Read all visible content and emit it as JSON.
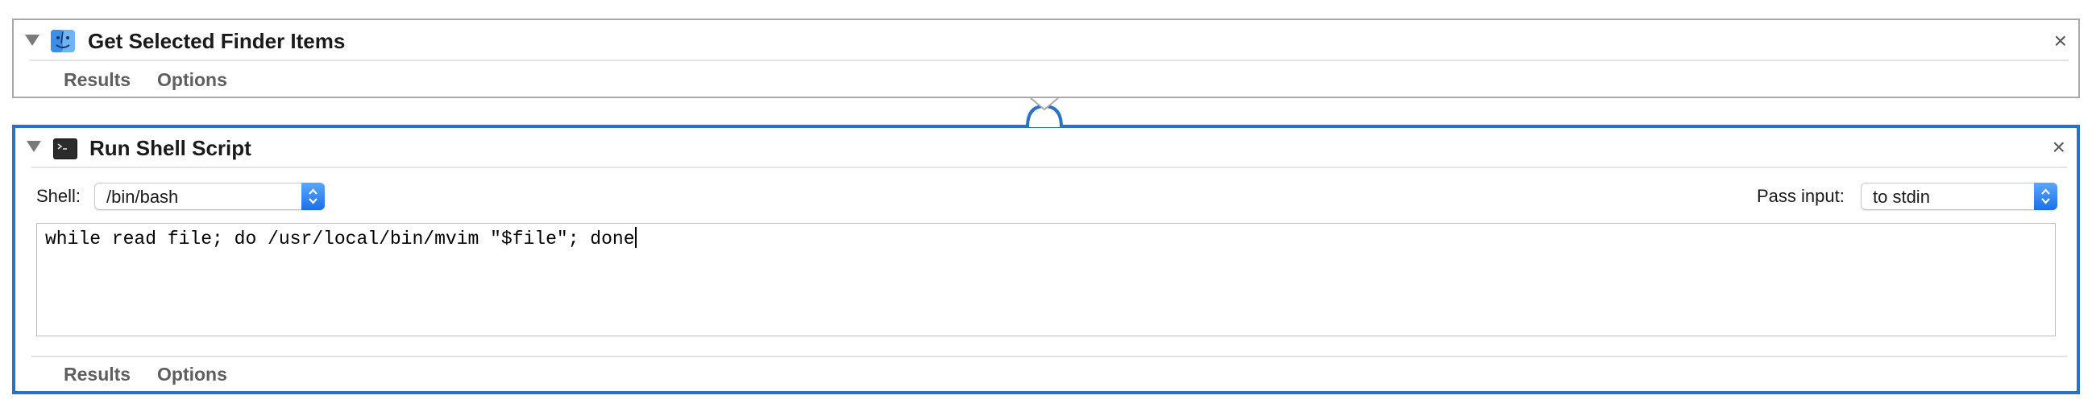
{
  "actions": [
    {
      "title": "Get Selected Finder Items",
      "icon": "finder-icon",
      "close_label": "×",
      "tabs": [
        "Results",
        "Options"
      ]
    },
    {
      "title": "Run Shell Script",
      "icon": "terminal-icon",
      "close_label": "×",
      "shell_label": "Shell:",
      "shell_value": "/bin/bash",
      "pass_input_label": "Pass input:",
      "pass_input_value": "to stdin",
      "script": "while read file; do /usr/local/bin/mvim \"$file\"; done",
      "tabs": [
        "Results",
        "Options"
      ]
    }
  ],
  "colors": {
    "selected_border": "#2a72c8",
    "unselected_border": "#a9a9a9",
    "popup_accent": "#1c6fe8"
  }
}
